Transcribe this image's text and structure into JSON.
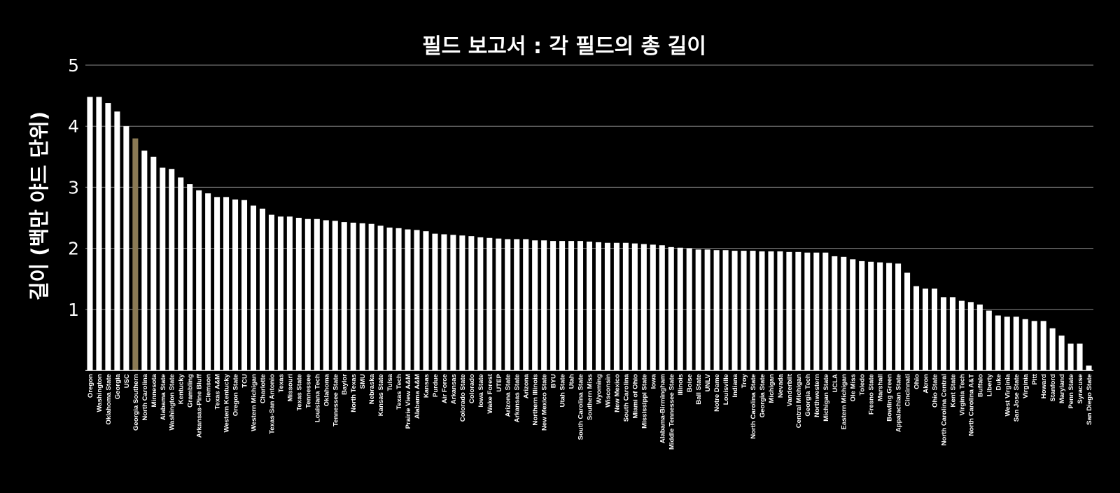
{
  "chart_data": {
    "type": "bar",
    "title": "필드 보고서 : 각 필드의 총 길이",
    "xlabel": "",
    "ylabel": "길이 (백만 야드 단위)",
    "ylim": [
      0,
      5
    ],
    "yticks": [
      1,
      2,
      3,
      4,
      5
    ],
    "grid": true,
    "bar_color": "#ffffff",
    "highlight_color": "#8b7a55",
    "highlight_category": "Georgia Southern",
    "categories": [
      "Oregon",
      "Washington",
      "Oklahoma State",
      "Georgia",
      "USC",
      "Georgia Southern",
      "North Carolina",
      "Minnesota",
      "Alabama State",
      "Washington State",
      "Kentucky",
      "Grambling",
      "Arkansas-Pine Bluff",
      "Clemson",
      "Texas A&M",
      "Western Kentucky",
      "Oregon State",
      "TCU",
      "Western Michigan",
      "Charlotte",
      "Texas-San Antonio",
      "Texas",
      "Missouri",
      "Texas State",
      "Tennessee",
      "Louisiana Tech",
      "Oklahoma",
      "Tennessee State",
      "Baylor",
      "North Texas",
      "SMU",
      "Nebraska",
      "Kansas State",
      "Tulsa",
      "Texas Tech",
      "Prairie View A&M",
      "Alabama A&M",
      "Kansas",
      "Purdue",
      "Air Force",
      "Arkansas",
      "Colorado State",
      "Colorado",
      "Iowa State",
      "Wake Forest",
      "UTEP",
      "Arizona State",
      "Arkansas State",
      "Arizona",
      "Northern Illinois",
      "New Mexico State",
      "BYU",
      "Utah State",
      "Utah",
      "South Carolina State",
      "Southern Miss",
      "Wyoming",
      "Wisconsin",
      "New Mexico",
      "South Carolina",
      "Miami of Ohio",
      "Mississippi State",
      "Iowa",
      "Alabama-Birmingham",
      "Middle Tennessee State",
      "Illinois",
      "Boise",
      "Ball State",
      "UNLV",
      "Notre Dame",
      "Louisville",
      "Indiana",
      "Troy",
      "North Carolina State",
      "Georgia State",
      "Michigan",
      "Nevada",
      "Vanderbilt",
      "Central Michigan",
      "Georgia Tech",
      "Northwestern",
      "Michigan State",
      "UCLA",
      "Eastern Michigan",
      "Ole Miss",
      "Toledo",
      "Fresno State",
      "Marshall",
      "Bowling Green",
      "Appalachian State",
      "Cincinnati",
      "Ohio",
      "Akron",
      "Ohio State",
      "North Carolina Central",
      "Kent State",
      "Virginia Tech",
      "North Carolina A&T",
      "Buffalo",
      "Liberty",
      "Duke",
      "West Virginia",
      "San Jose State",
      "Virginia",
      "Pitt",
      "Howard",
      "Stanford",
      "Maryland",
      "Penn State",
      "Syracuse",
      "San Diego State"
    ],
    "values": [
      4.48,
      4.48,
      4.38,
      4.24,
      4.0,
      3.8,
      3.6,
      3.5,
      3.32,
      3.3,
      3.16,
      3.05,
      2.95,
      2.9,
      2.84,
      2.84,
      2.8,
      2.79,
      2.7,
      2.65,
      2.55,
      2.52,
      2.52,
      2.5,
      2.48,
      2.48,
      2.46,
      2.45,
      2.43,
      2.42,
      2.41,
      2.4,
      2.37,
      2.34,
      2.33,
      2.31,
      2.3,
      2.28,
      2.24,
      2.23,
      2.22,
      2.21,
      2.2,
      2.18,
      2.17,
      2.16,
      2.15,
      2.15,
      2.15,
      2.13,
      2.13,
      2.12,
      2.12,
      2.12,
      2.12,
      2.11,
      2.1,
      2.09,
      2.09,
      2.09,
      2.08,
      2.07,
      2.06,
      2.05,
      2.02,
      2.01,
      2.0,
      1.98,
      1.98,
      1.97,
      1.97,
      1.96,
      1.96,
      1.96,
      1.95,
      1.95,
      1.95,
      1.94,
      1.94,
      1.93,
      1.93,
      1.93,
      1.87,
      1.86,
      1.82,
      1.79,
      1.78,
      1.77,
      1.76,
      1.75,
      1.6,
      1.38,
      1.34,
      1.34,
      1.2,
      1.2,
      1.14,
      1.12,
      1.08,
      0.98,
      0.9,
      0.88,
      0.88,
      0.84,
      0.81,
      0.81,
      0.69,
      0.57,
      0.44,
      0.44,
      0.08
    ]
  }
}
